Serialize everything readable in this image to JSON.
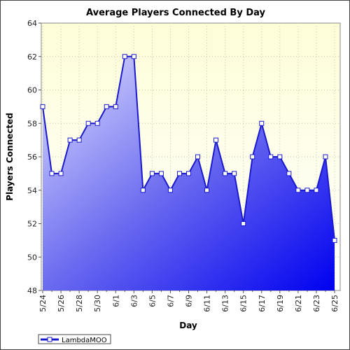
{
  "chart_data": {
    "type": "area",
    "title": "Average Players Connected By Day",
    "xlabel": "Day",
    "ylabel": "Players Connected",
    "ylim": [
      48,
      64
    ],
    "yticks": [
      48,
      50,
      52,
      54,
      56,
      58,
      60,
      62,
      64
    ],
    "grid": true,
    "legend_position": "bottom-left",
    "categories": [
      "5/24",
      "5/25",
      "5/26",
      "5/27",
      "5/28",
      "5/29",
      "5/30",
      "5/31",
      "6/1",
      "6/2",
      "6/3",
      "6/4",
      "6/5",
      "6/6",
      "6/7",
      "6/8",
      "6/9",
      "6/10",
      "6/11",
      "6/12",
      "6/13",
      "6/14",
      "6/15",
      "6/16",
      "6/17",
      "6/18",
      "6/19",
      "6/20",
      "6/21",
      "6/22",
      "6/23",
      "6/24",
      "6/25"
    ],
    "tick_labels": [
      "5/24",
      "5/26",
      "5/28",
      "5/30",
      "6/1",
      "6/3",
      "6/5",
      "6/7",
      "6/9",
      "6/11",
      "6/13",
      "6/15",
      "6/17",
      "6/19",
      "6/21",
      "6/23",
      "6/25"
    ],
    "series": [
      {
        "name": "LambdaMOO",
        "values": [
          59,
          55,
          55,
          57,
          57,
          58,
          58,
          59,
          59,
          62,
          62,
          54,
          55,
          55,
          54,
          55,
          55,
          56,
          54,
          57,
          55,
          55,
          52,
          56,
          58,
          56,
          56,
          55,
          54,
          54,
          54,
          56,
          51
        ]
      }
    ],
    "colors": {
      "plot_background_top": "#fdfde0",
      "line": "#1a1acc",
      "fill_top_left": "#dcdcff",
      "fill_bottom_right": "#0000ee",
      "grid": "#c8c8a0"
    }
  }
}
